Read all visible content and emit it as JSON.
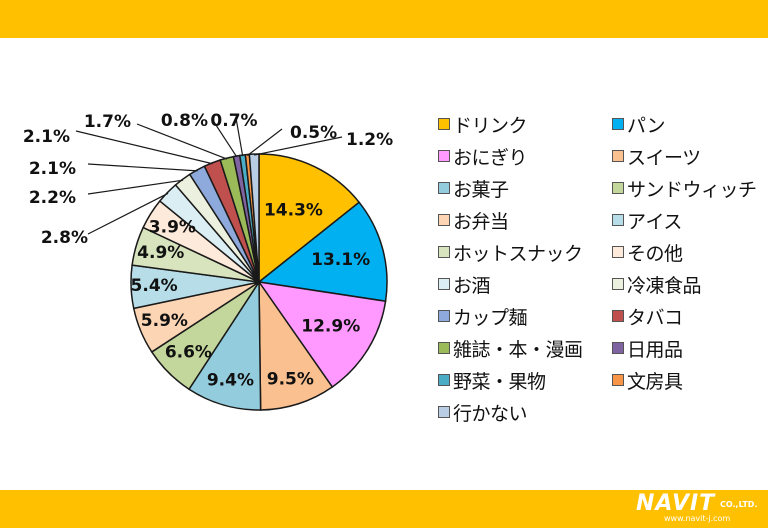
{
  "colors": {
    "bar": "#FFC000",
    "text": "#111111",
    "line": "#1a1a1a"
  },
  "chart_data": {
    "type": "pie",
    "start_angle_deg": 0,
    "direction": "clockwise",
    "categories": [
      "ドリンク",
      "パン",
      "おにぎり",
      "スイーツ",
      "お菓子",
      "サンドウィッチ",
      "お弁当",
      "アイス",
      "ホットスナック",
      "その他",
      "お酒",
      "冷凍食品",
      "カップ麺",
      "タバコ",
      "雑誌・本・漫画",
      "日用品",
      "野菜・果物",
      "文房具",
      "行かない"
    ],
    "values": [
      14.3,
      13.1,
      12.9,
      9.5,
      9.4,
      6.6,
      5.9,
      5.4,
      4.9,
      3.9,
      2.8,
      2.2,
      2.1,
      2.1,
      1.7,
      0.8,
      0.7,
      0.5,
      1.2
    ],
    "labels": [
      "14.3%",
      "13.1%",
      "12.9%",
      "9.5%",
      "9.4%",
      "6.6%",
      "5.9%",
      "5.4%",
      "4.9%",
      "3.9%",
      "2.8%",
      "2.2%",
      "2.1%",
      "2.1%",
      "1.7%",
      "0.8%",
      "0.7%",
      "0.5%",
      "1.2%"
    ],
    "slice_colors": [
      "#FFC000",
      "#00B0F0",
      "#FF99FF",
      "#FAC090",
      "#93CDDD",
      "#C3D69B",
      "#FCD5B5",
      "#B7DEE8",
      "#D7E4BD",
      "#FDEADA",
      "#DBEEF4",
      "#EBF1DE",
      "#8EA9DB",
      "#C0504D",
      "#9BBB59",
      "#8064A2",
      "#4BACC6",
      "#F79646",
      "#B9CDE5"
    ],
    "legend_position": "right"
  },
  "logo": {
    "name": "NAVIT",
    "company": "CO.,LTD.",
    "url": "www.navit-j.com"
  }
}
